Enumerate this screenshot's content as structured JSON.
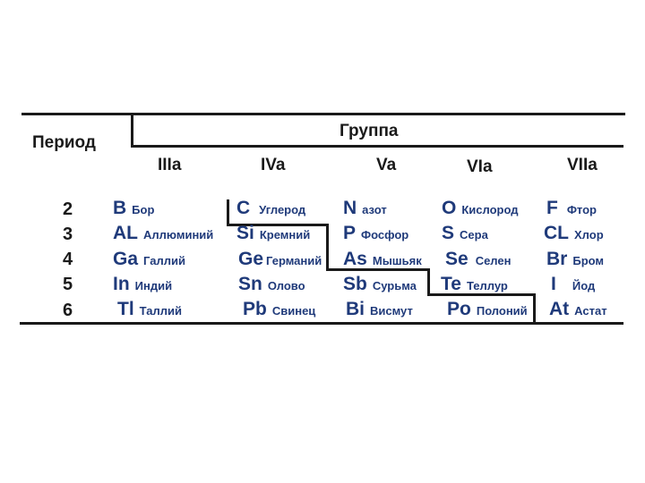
{
  "header": {
    "period_label": "Период",
    "group_label": "Группа",
    "groups": [
      "IIIa",
      "IVa",
      "Va",
      "VIa",
      "VIIa"
    ]
  },
  "periods": [
    "2",
    "3",
    "4",
    "5",
    "6"
  ],
  "columns": [
    {
      "group": "IIIa",
      "elements": [
        {
          "symbol": "B",
          "name": "Бор"
        },
        {
          "symbol": "AL",
          "name": "Аллюминий"
        },
        {
          "symbol": "Ga",
          "name": "Галлий"
        },
        {
          "symbol": "In",
          "name": "Индий"
        },
        {
          "symbol": "Tl",
          "name": "Таллий"
        }
      ]
    },
    {
      "group": "IVa",
      "elements": [
        {
          "symbol": "C",
          "name": "Углерод"
        },
        {
          "symbol": "Si",
          "name": "Кремний"
        },
        {
          "symbol": "Ge",
          "name": "Германий"
        },
        {
          "symbol": "Sn",
          "name": "Олово"
        },
        {
          "symbol": "Pb",
          "name": "Свинец"
        }
      ]
    },
    {
      "group": "Va",
      "elements": [
        {
          "symbol": "N",
          "name": "азот"
        },
        {
          "symbol": "P",
          "name": "Фосфор"
        },
        {
          "symbol": "As",
          "name": "Мышьяк"
        },
        {
          "symbol": "Sb",
          "name": "Сурьма"
        },
        {
          "symbol": "Bi",
          "name": "Висмут"
        }
      ]
    },
    {
      "group": "VIa",
      "elements": [
        {
          "symbol": "O",
          "name": "Кислород"
        },
        {
          "symbol": "S",
          "name": "Сера"
        },
        {
          "symbol": "Se",
          "name": "Селен"
        },
        {
          "symbol": "Te",
          "name": "Теллур"
        },
        {
          "symbol": "Po",
          "name": "Полоний"
        }
      ]
    },
    {
      "group": "VIIa",
      "elements": [
        {
          "symbol": "F",
          "name": "Фтор"
        },
        {
          "symbol": "CL",
          "name": "Хлор"
        },
        {
          "symbol": "Br",
          "name": "Бром"
        },
        {
          "symbol": "I",
          "name": "Йод"
        },
        {
          "symbol": "At",
          "name": "Астат"
        }
      ]
    }
  ]
}
